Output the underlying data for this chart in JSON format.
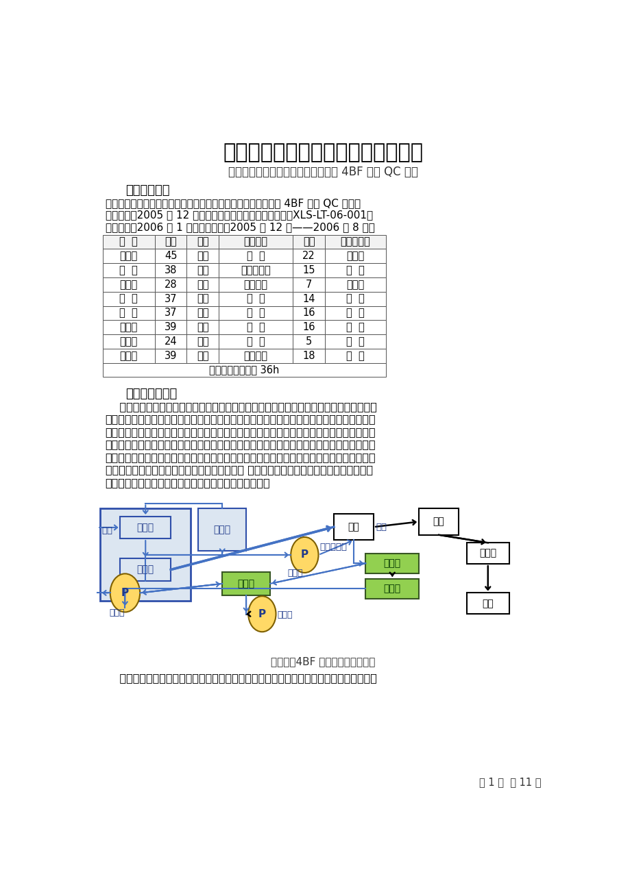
{
  "title": "消除宝钢四高炉水渣吹制箱蒸汽返冒",
  "subtitle": "中冶宝钢技术服务有限公司炼铁车间 4BF 水渣 QC 小组",
  "section1_title": "一、小组简介",
  "section1_lines": [
    "课题名称：消除宝钢四高炉水渣蒸汽返冒；小组名称：炼铁车间 4BF 水渣 QC 小组；",
    "成立时间：2005 年 12 月；课题类型：现场型；注册编号：XLS-LT-06-001；",
    "注册时间：2006 年 1 月；活动时间：2005 年 12 月——2006 年 8 月。"
  ],
  "table_headers": [
    "姓  名",
    "年龄",
    "学历",
    "职务职称",
    "工龄",
    "小组内职务"
  ],
  "table_rows": [
    [
      "朱解华",
      "45",
      "大专",
      "主  操",
      "22",
      "辅导员"
    ],
    [
      "张  龙",
      "38",
      "大专",
      "生产作业长",
      "15",
      "组  长"
    ],
    [
      "周福根",
      "28",
      "技校",
      "白班管理",
      "7",
      "统计员"
    ],
    [
      "王  伟",
      "37",
      "技校",
      "班  长",
      "14",
      "组  员"
    ],
    [
      "张  良",
      "37",
      "技校",
      "班  长",
      "16",
      "组  员"
    ],
    [
      "王豪杰",
      "39",
      "技校",
      "班  长",
      "16",
      "组  员"
    ],
    [
      "甘秀伟",
      "24",
      "中专",
      "班  长",
      "5",
      "组  员"
    ],
    [
      "孙进兴",
      "39",
      "高中",
      "设备点检",
      "18",
      "组  员"
    ]
  ],
  "table_footer": "平均接受质量教育 36h",
  "section2_title": "二、事件背景：",
  "section2_text": [
    "    目前炼铁高炉炉渣处理方法只有两种，一种是放干渣，一种是冲水渣，放干渣的经济效益",
    "很差，所以以冲水渣为主。冲水渣就是用一定压力和流量的水，使液态的熔渣变成均匀的颗粒",
    "状水渣。水渣处理工艺有三种：一种是拉萨法，工艺落后，频临淘汰；一种是老因巴法，现在",
    "是主流工艺；一种是新因巴法，新因巴法是在老因巴法的基础上增加了一套冷凝装置，把含硫",
    "的水蒸气进行回收利用，是当前世界上最新的水渣处理工艺。这三种处理工艺在宝钢炼铁厂都",
    "有存在，一号高炉使用的是拉萨法水渣处理工艺 二、三号高炉使用的老因巴法水渣处理工艺",
    "四号高炉使用的新因巴法水渣处理工艺。工艺流程如下："
  ],
  "flow_caption": "（图一）4BF 水渣处理工艺流程图",
  "bottom_text": "    其整个流程是这样的：高炉熔渣与铁水分离后经熔渣沟进入渣水斗，水渣冲制箱喷出高速",
  "page_info": "第 1 页  共 11 页",
  "bg_color": "#ffffff",
  "text_color": "#000000",
  "blue_border": "#2f4faa",
  "blue_fill": "#dce6f1",
  "green_fill": "#92d050",
  "green_border": "#375623",
  "yellow_fill": "#ffd966",
  "yellow_border": "#7f6000",
  "black_box_border": "#000000",
  "arrow_blue": "#4472c4",
  "arrow_black": "#000000"
}
